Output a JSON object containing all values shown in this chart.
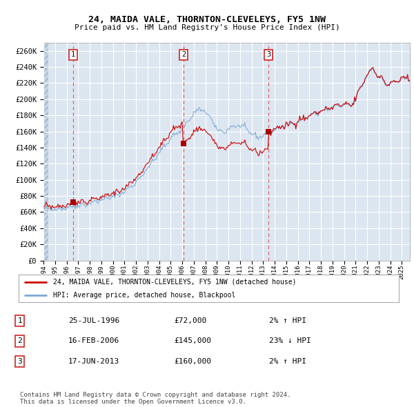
{
  "title": "24, MAIDA VALE, THORNTON-CLEVELEYS, FY5 1NW",
  "subtitle": "Price paid vs. HM Land Registry's House Price Index (HPI)",
  "ylim": [
    0,
    270000
  ],
  "yticks": [
    0,
    20000,
    40000,
    60000,
    80000,
    100000,
    120000,
    140000,
    160000,
    180000,
    200000,
    220000,
    240000,
    260000
  ],
  "xlim_start": 1994.0,
  "xlim_end": 2025.7,
  "background_color": "#dce6f1",
  "sale_dates": [
    1996.57,
    2006.12,
    2013.46
  ],
  "sale_prices": [
    72000,
    145000,
    160000
  ],
  "sale_labels": [
    "1",
    "2",
    "3"
  ],
  "legend_line1": "24, MAIDA VALE, THORNTON-CLEVELEYS, FY5 1NW (detached house)",
  "legend_line2": "HPI: Average price, detached house, Blackpool",
  "table_data": [
    [
      "1",
      "25-JUL-1996",
      "£72,000",
      "2% ↑ HPI"
    ],
    [
      "2",
      "16-FEB-2006",
      "£145,000",
      "23% ↓ HPI"
    ],
    [
      "3",
      "17-JUN-2013",
      "£160,000",
      "2% ↑ HPI"
    ]
  ],
  "footer": "Contains HM Land Registry data © Crown copyright and database right 2024.\nThis data is licensed under the Open Government Licence v3.0.",
  "red_line_color": "#cc0000",
  "blue_line_color": "#7ba7d4"
}
